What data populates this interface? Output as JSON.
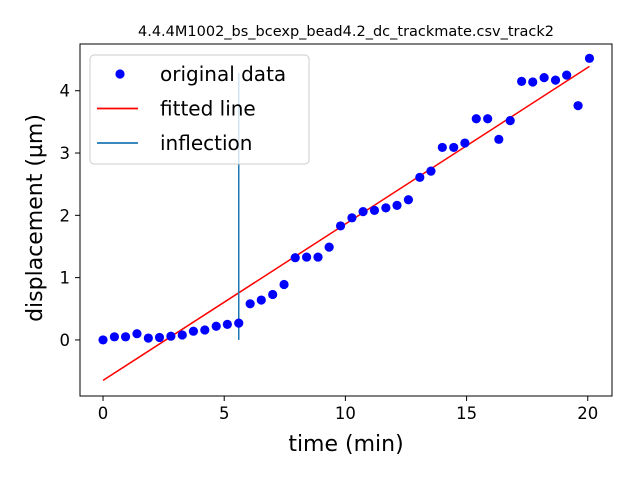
{
  "chart_data": {
    "type": "scatter",
    "title": "4.4.4M1002_bs_bcexp_bead4.2_dc_trackmate.csv_track2",
    "xlabel": "time (min)",
    "ylabel": "displacement (µm)",
    "xlim": [
      -0.95,
      21.0
    ],
    "ylim": [
      -0.9,
      4.75
    ],
    "xticks": [
      0,
      5,
      10,
      15,
      20
    ],
    "yticks": [
      0,
      1,
      2,
      3,
      4
    ],
    "grid": false,
    "legend_position": "top-left",
    "series": [
      {
        "name": "original data",
        "kind": "scatter",
        "color": "#0000ff",
        "x": [
          0.0,
          0.47,
          0.93,
          1.4,
          1.87,
          2.33,
          2.8,
          3.27,
          3.73,
          4.2,
          4.67,
          5.13,
          5.6,
          6.07,
          6.53,
          7.0,
          7.47,
          7.93,
          8.4,
          8.87,
          9.33,
          9.8,
          10.27,
          10.73,
          11.2,
          11.67,
          12.13,
          12.6,
          13.07,
          13.53,
          14.0,
          14.47,
          14.93,
          15.4,
          15.87,
          16.33,
          16.8,
          17.27,
          17.73,
          18.2,
          18.67,
          19.13,
          19.6,
          20.07
        ],
        "y": [
          0.0,
          0.05,
          0.05,
          0.1,
          0.03,
          0.04,
          0.06,
          0.08,
          0.14,
          0.16,
          0.22,
          0.25,
          0.27,
          0.58,
          0.64,
          0.73,
          0.89,
          1.32,
          1.33,
          1.33,
          1.49,
          1.83,
          1.96,
          2.06,
          2.08,
          2.12,
          2.16,
          2.25,
          2.61,
          2.71,
          3.09,
          3.09,
          3.16,
          3.55,
          3.55,
          3.22,
          3.52,
          4.15,
          4.14,
          4.21,
          4.17,
          4.25,
          3.76,
          4.52
        ]
      },
      {
        "name": "fitted line",
        "kind": "line",
        "color": "#ff0000",
        "x": [
          0.0,
          20.07
        ],
        "y": [
          -0.65,
          4.39
        ]
      },
      {
        "name": "inflection",
        "kind": "vline",
        "color": "#1f77b4",
        "x": 5.6,
        "y": [
          0.0,
          4.28
        ]
      }
    ]
  }
}
